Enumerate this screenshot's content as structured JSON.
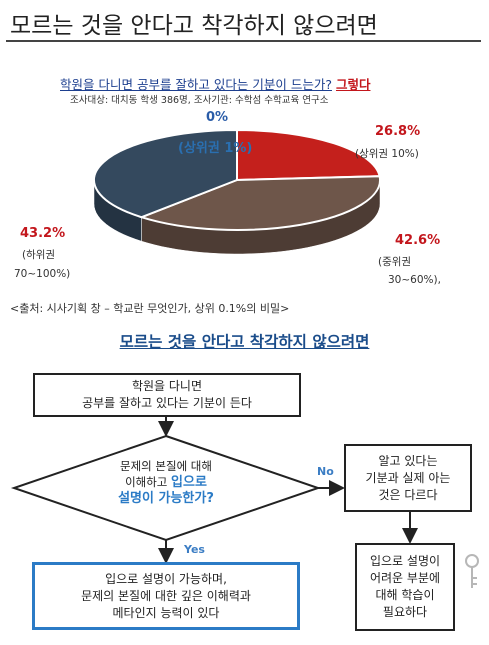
{
  "header": {
    "title": "모르는 것을 안다고 착각하지 않으려면"
  },
  "survey": {
    "question": "학원을 다니면 공부를 잘하고 있다는 기분이 드는가?",
    "answer": "그렇다",
    "details": "조사대상: 대치동 학생 386명, 조사기관: 수학섬 수학교육 연구소"
  },
  "chart_data": {
    "type": "pie",
    "title": "학원을 다니면 공부를 잘하고 있다는 기분이 드는가? 그렇다",
    "slices": [
      {
        "label": "(상위권 1%)",
        "value": 0,
        "value_label": "0%",
        "color": "#2a6fb0"
      },
      {
        "label": "(상위권 10%)",
        "value": 26.8,
        "value_label": "26.8%",
        "color": "#c4201c"
      },
      {
        "label": "(중위권 30~60%),",
        "value": 42.6,
        "value_label": "42.6%",
        "color": "#6e564a"
      },
      {
        "label": "(하위권 70~100%)",
        "value": 43.2,
        "value_label": "43.2%",
        "color": "#34495e"
      }
    ]
  },
  "labels": {
    "zero_value": "0%",
    "zero_name": "(상위권 1%)",
    "top10_value": "26.8%",
    "top10_name": "(상위권 10%)",
    "mid_value": "42.6%",
    "mid_name_1": "(중위권",
    "mid_name_2": "30~60%),",
    "low_value": "43.2%",
    "low_name_1": "(하위권",
    "low_name_2": "70~100%)"
  },
  "source": "<출처: 시사기획 창 – 학교란 무엇인가, 상위 0.1%의 비밀>",
  "subtitle": "모르는 것을 안다고 착각하지 않으려면",
  "flow": {
    "start_1": "학원을 다니면",
    "start_2": "공부를 잘하고 있다는 기분이 든다",
    "decision_1": "문제의 본질에 대해",
    "decision_2a": "이해하고 ",
    "decision_2b": "입으로",
    "decision_3": "설명이 가능한가?",
    "no_label": "No",
    "yes_label": "Yes",
    "no_box_1": "알고 있다는",
    "no_box_2": "기분과 실제 아는",
    "no_box_3": "것은 다르다",
    "yes_box_1": "입으로 설명이 가능하며,",
    "yes_box_2": "문제의 본질에 대한 깊은 이해력과",
    "yes_box_3": "메타인지 능력이 있다",
    "study_box_1": "입으로 설명이",
    "study_box_2": "어려운 부분에",
    "study_box_3": "대해 학습이",
    "study_box_4": "필요하다"
  }
}
